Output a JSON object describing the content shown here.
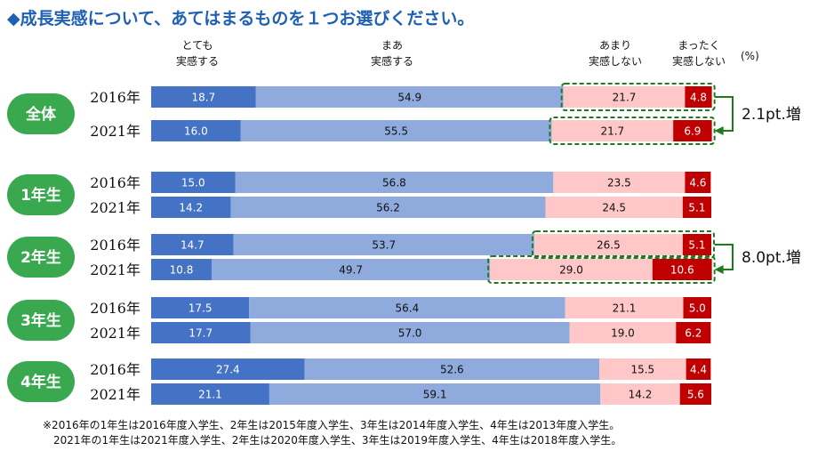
{
  "title": "◆成長実感について、あてはまるものを１つお選びください。",
  "unit": "(%)",
  "colors": {
    "very": "#4472c4",
    "somewhat": "#8faadc",
    "not_much": "#ffc7c7",
    "not_at_all": "#c00000",
    "group_badge": "#3aa84f",
    "highlight": "#1e7a1e",
    "title": "#1f5fb4"
  },
  "chart_data": {
    "type": "bar",
    "orientation": "horizontal",
    "stacked": true,
    "xlim": [
      0,
      100
    ],
    "series": [
      {
        "name": "とても 実感する",
        "label_lines": [
          "とても",
          "実感する"
        ],
        "key": "very"
      },
      {
        "name": "まあ 実感する",
        "label_lines": [
          "まあ",
          "実感する"
        ],
        "key": "somewhat"
      },
      {
        "name": "あまり 実感しない",
        "label_lines": [
          "あまり",
          "実感しない"
        ],
        "key": "not_much"
      },
      {
        "name": "まったく 実感しない",
        "label_lines": [
          "まったく",
          "実感しない"
        ],
        "key": "not_at_all"
      }
    ],
    "groups": [
      {
        "label": "全体",
        "rows": [
          {
            "year": "2016年",
            "values": [
              18.7,
              54.9,
              21.7,
              4.8
            ]
          },
          {
            "year": "2021年",
            "values": [
              16.0,
              55.5,
              21.7,
              6.9
            ]
          }
        ]
      },
      {
        "label": "1年生",
        "rows": [
          {
            "year": "2016年",
            "values": [
              15.0,
              56.8,
              23.5,
              4.6
            ]
          },
          {
            "year": "2021年",
            "values": [
              14.2,
              56.2,
              24.5,
              5.1
            ]
          }
        ]
      },
      {
        "label": "2年生",
        "rows": [
          {
            "year": "2016年",
            "values": [
              14.7,
              53.7,
              26.5,
              5.1
            ]
          },
          {
            "year": "2021年",
            "values": [
              10.8,
              49.7,
              29.0,
              10.6
            ]
          }
        ]
      },
      {
        "label": "3年生",
        "rows": [
          {
            "year": "2016年",
            "values": [
              17.5,
              56.4,
              21.1,
              5.0
            ]
          },
          {
            "year": "2021年",
            "values": [
              17.7,
              57.0,
              19.0,
              6.2
            ]
          }
        ]
      },
      {
        "label": "4年生",
        "rows": [
          {
            "year": "2016年",
            "values": [
              27.4,
              52.6,
              15.5,
              4.4
            ]
          },
          {
            "year": "2021年",
            "values": [
              21.1,
              59.1,
              14.2,
              5.6
            ]
          }
        ]
      }
    ],
    "annotations": [
      {
        "group": 0,
        "text": "2.1pt.増"
      },
      {
        "group": 2,
        "text": "8.0pt.増"
      }
    ]
  },
  "notes": [
    "※2016年の1年生は2016年度入学生、2年生は2015年度入学生、3年生は2014年度入学生、4年生は2013年度入学生。",
    "2021年の1年生は2021年度入学生、2年生は2020年度入学生、3年生は2019年度入学生、4年生は2018年度入学生。"
  ]
}
